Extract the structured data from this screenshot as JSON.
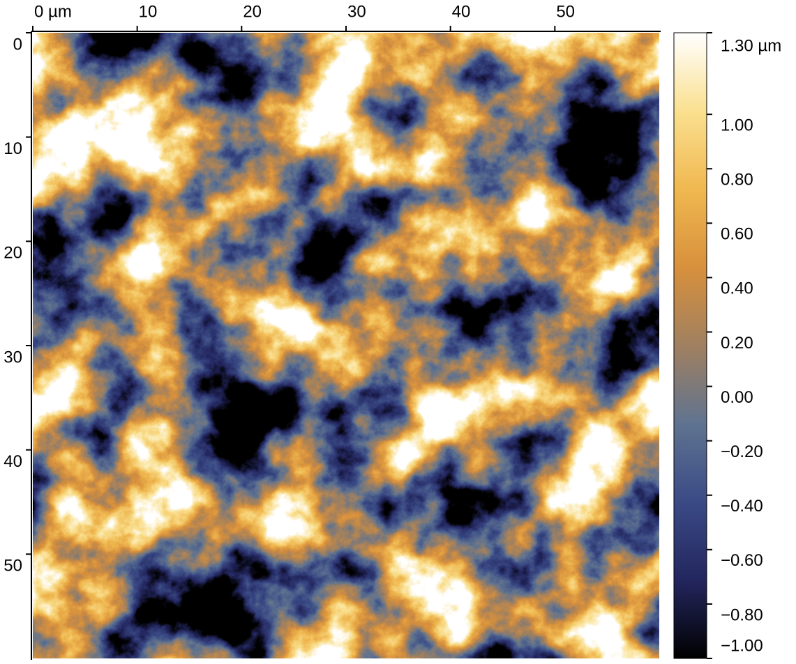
{
  "chart_data": {
    "type": "image",
    "xlim": [
      0,
      60
    ],
    "ylim": [
      0,
      60
    ],
    "xticks": [
      {
        "value": 0,
        "label": "0 µm"
      },
      10,
      20,
      30,
      40,
      50
    ],
    "yticks": [
      0,
      10,
      20,
      30,
      40,
      50
    ],
    "colorbar": {
      "clim": [
        -1.0,
        1.3
      ],
      "ticks": [
        {
          "value": 1.3,
          "label": "1.30 µm"
        },
        {
          "value": 1.0,
          "label": "1.00"
        },
        {
          "value": 0.8,
          "label": "0.80"
        },
        {
          "value": 0.6,
          "label": "0.60"
        },
        {
          "value": 0.4,
          "label": "0.40"
        },
        {
          "value": 0.2,
          "label": "0.20"
        },
        {
          "value": 0,
          "label": "0.00"
        },
        {
          "value": -0.2,
          "label": "−0.20"
        },
        {
          "value": -0.4,
          "label": "−0.40"
        },
        {
          "value": -0.6,
          "label": "−0.60"
        },
        {
          "value": -0.8,
          "label": "−0.80"
        },
        {
          "value": -1.0,
          "label": "−1.00"
        }
      ],
      "colors": [
        "#000000",
        "#23265e",
        "#3a4a85",
        "#5f7390",
        "#a08060",
        "#d8903c",
        "#f0b850",
        "#fae090",
        "#ffffff"
      ]
    }
  }
}
